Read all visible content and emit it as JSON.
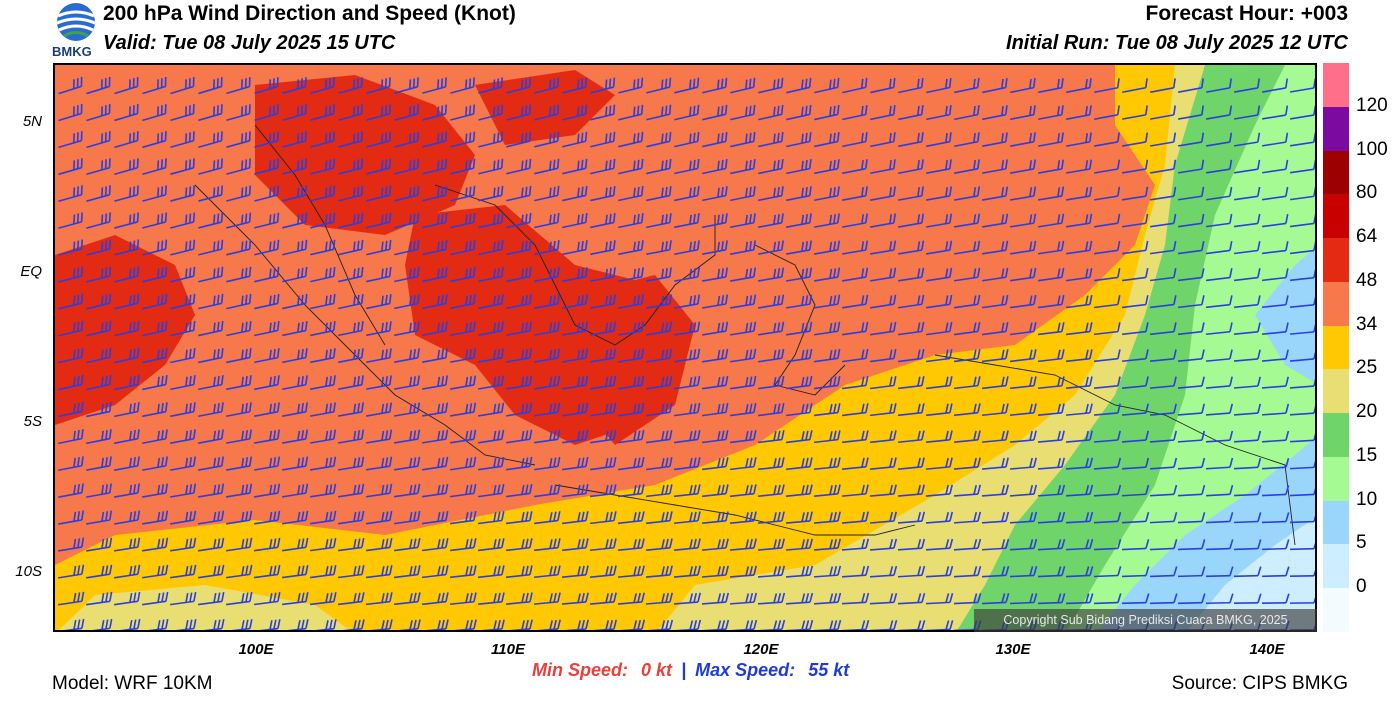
{
  "header": {
    "logo_text": "BMKG",
    "title": "200 hPa Wind Direction and Speed (Knot)",
    "valid": "Valid: Tue 08 July 2025 15 UTC",
    "forecast_hour": "Forecast Hour: +003",
    "initial_run": "Initial Run: Tue 08 July 2025 12 UTC"
  },
  "map": {
    "lat_labels": [
      "5N",
      "EQ",
      "5S",
      "10S"
    ],
    "lon_labels": [
      "100E",
      "110E",
      "120E",
      "130E",
      "140E"
    ],
    "copyright": "Copyright Sub Bidang Prediksi Cuaca BMKG, 2025"
  },
  "colorbar": {
    "labels": [
      "120",
      "100",
      "80",
      "64",
      "48",
      "34",
      "25",
      "20",
      "15",
      "10",
      "5",
      "0"
    ],
    "colors": [
      "#ff6f8a",
      "#7a0aa0",
      "#9c0000",
      "#c80000",
      "#e32a13",
      "#f7784a",
      "#ffc800",
      "#e8de72",
      "#6fd46a",
      "#a6fa94",
      "#9ad5fc",
      "#cdeeff",
      "#f3fbff"
    ]
  },
  "footer": {
    "min_label": "Min Speed:",
    "min_value": "0 kt",
    "separator": "|",
    "max_label": "Max Speed:",
    "max_value": "55 kt",
    "model": "Model: WRF 10KM",
    "source": "Source: CIPS BMKG"
  }
}
